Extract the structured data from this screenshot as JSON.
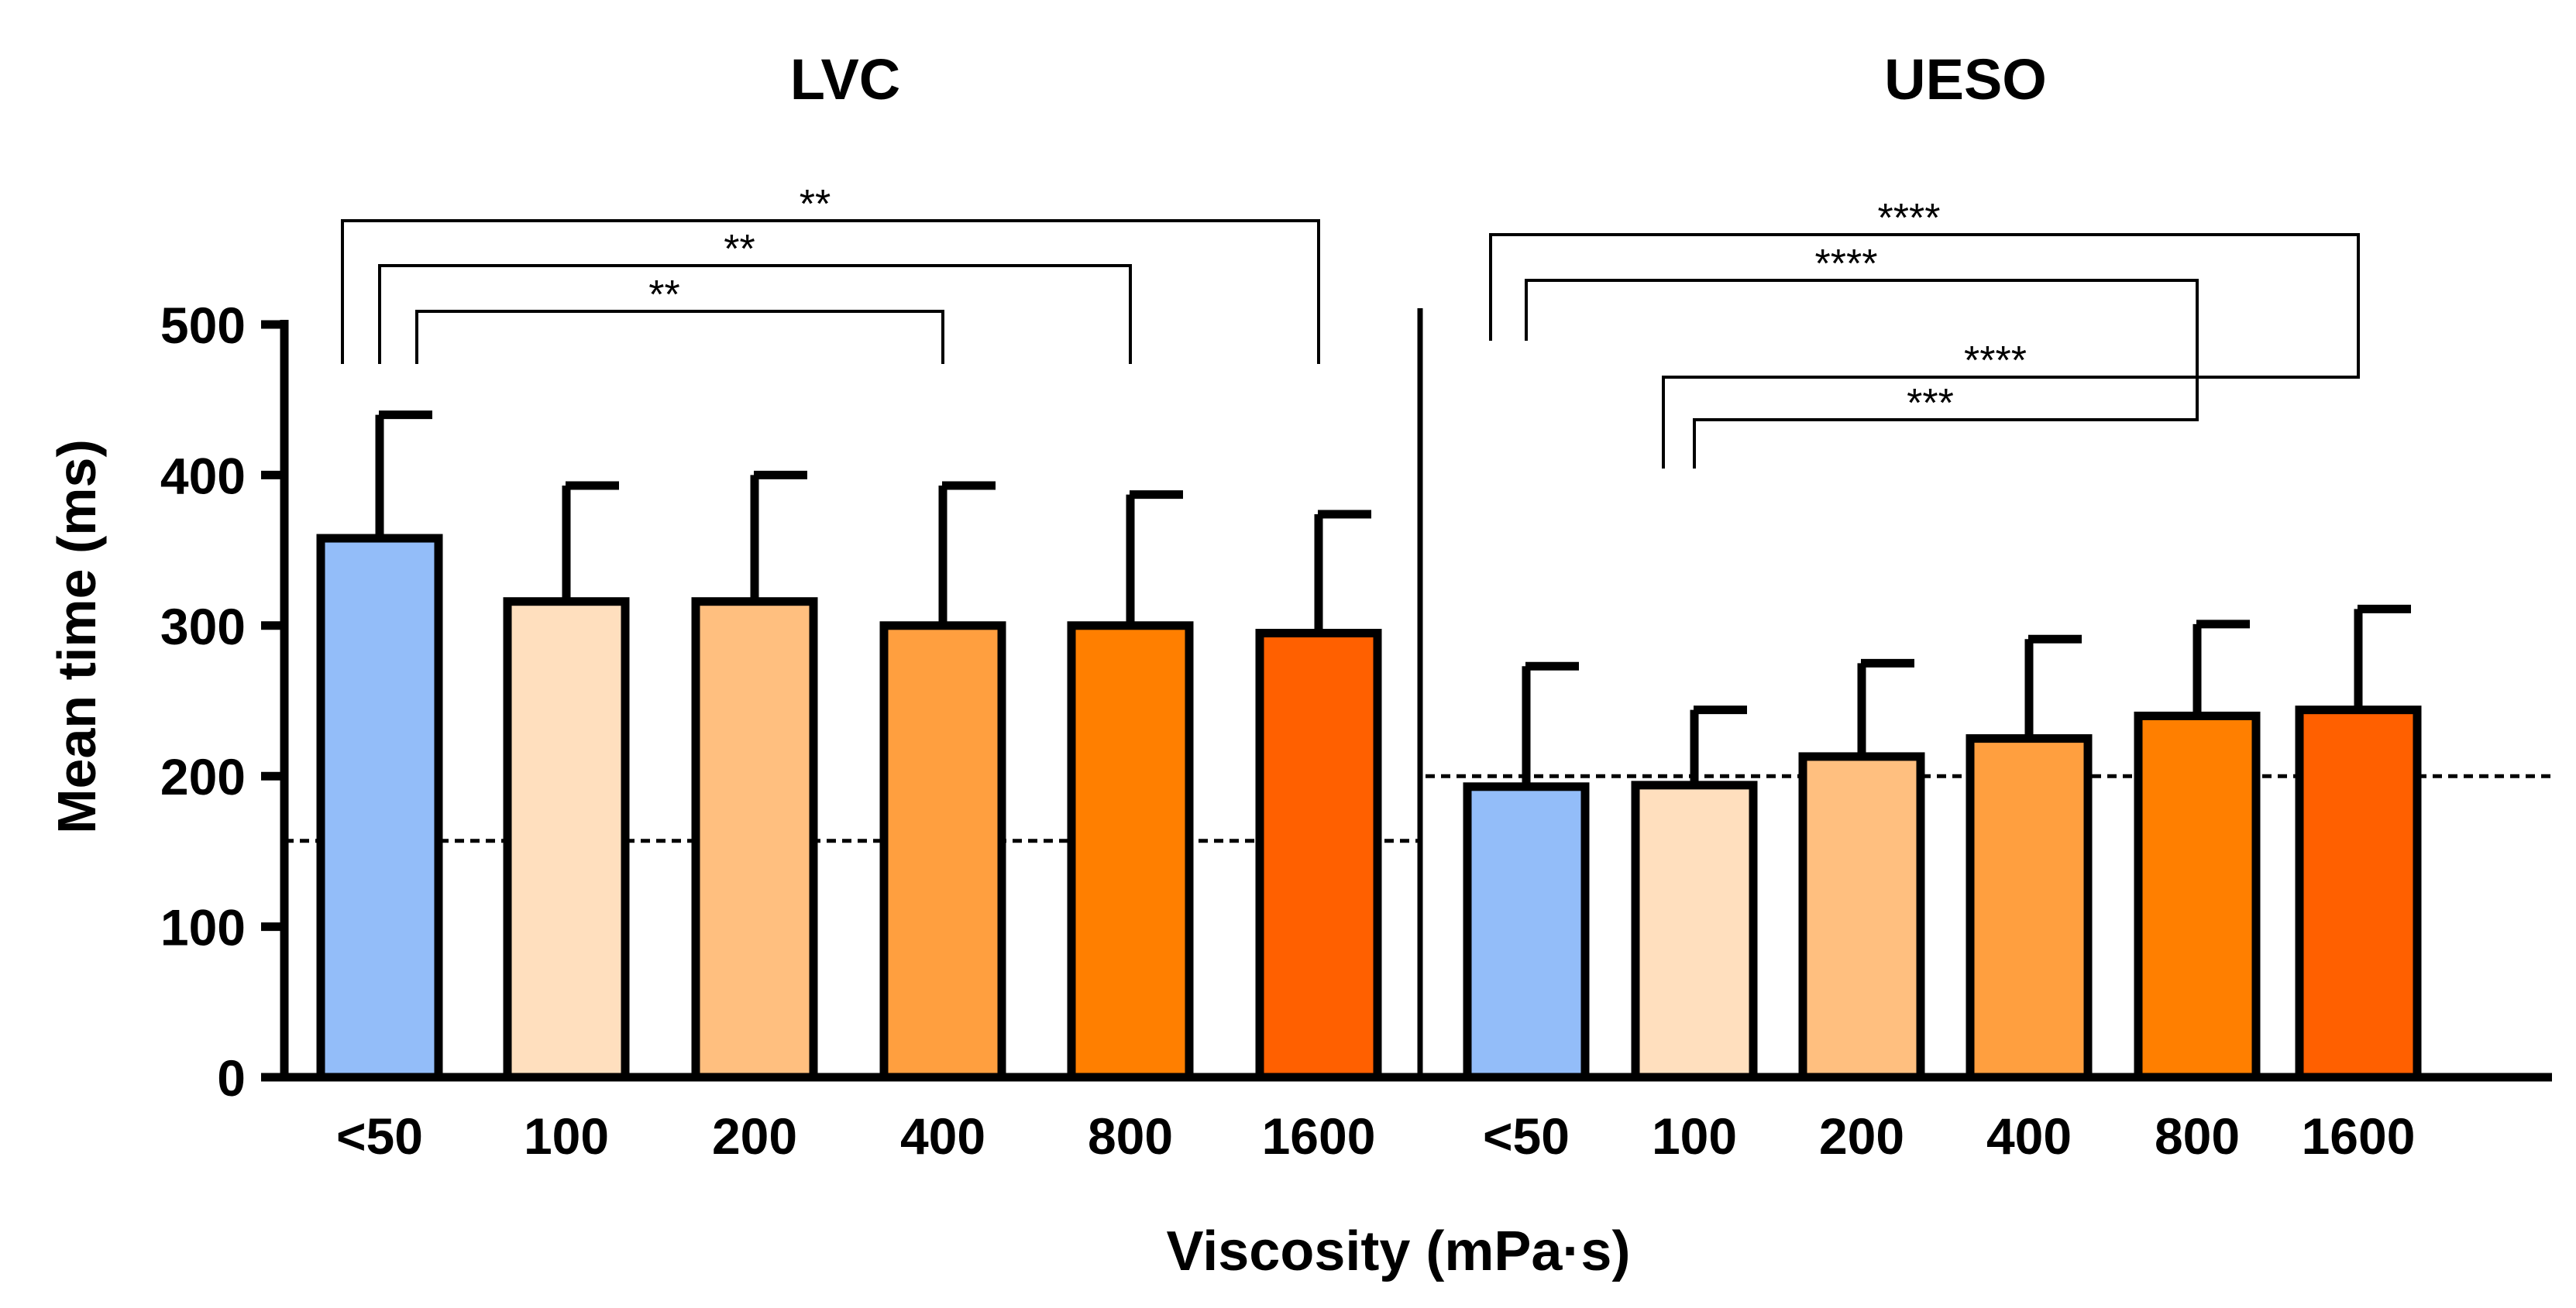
{
  "chart_data": {
    "type": "bar",
    "ylabel": "Mean time (ms)",
    "xlabel": "Viscosity (mPa·s)",
    "ylim": [
      0,
      500
    ],
    "yticks": [
      0,
      100,
      200,
      300,
      400,
      500
    ],
    "grid": false,
    "legend": "none",
    "panels": [
      {
        "title": "LVC",
        "categories": [
          "<50",
          "100",
          "200",
          "400",
          "800",
          "1600"
        ],
        "values": [
          358,
          316,
          316,
          300,
          300,
          295
        ],
        "error": [
          82,
          77,
          84,
          93,
          87,
          79
        ],
        "reference_line": 157,
        "significance": [
          {
            "from": "<50",
            "to": "1600",
            "label": "**"
          },
          {
            "from": "<50",
            "to": "800",
            "label": "**"
          },
          {
            "from": "<50",
            "to": "400",
            "label": "**"
          }
        ]
      },
      {
        "title": "UESO",
        "categories": [
          "<50",
          "100",
          "200",
          "400",
          "800",
          "1600"
        ],
        "values": [
          193,
          194,
          213,
          225,
          240,
          244
        ],
        "error": [
          80,
          50,
          62,
          66,
          61,
          67
        ],
        "reference_line": 200,
        "significance": [
          {
            "from": "<50",
            "to": "1600",
            "label": "****"
          },
          {
            "from": "<50",
            "to": "800",
            "label": "****"
          },
          {
            "from": "100",
            "to": "1600",
            "label": "****"
          },
          {
            "from": "100",
            "to": "800",
            "label": "***"
          }
        ]
      }
    ],
    "colors": [
      "#93bdf9",
      "#ffdfbe",
      "#ffbf7f",
      "#ff9f3f",
      "#ff7f00",
      "#ff6000"
    ]
  }
}
